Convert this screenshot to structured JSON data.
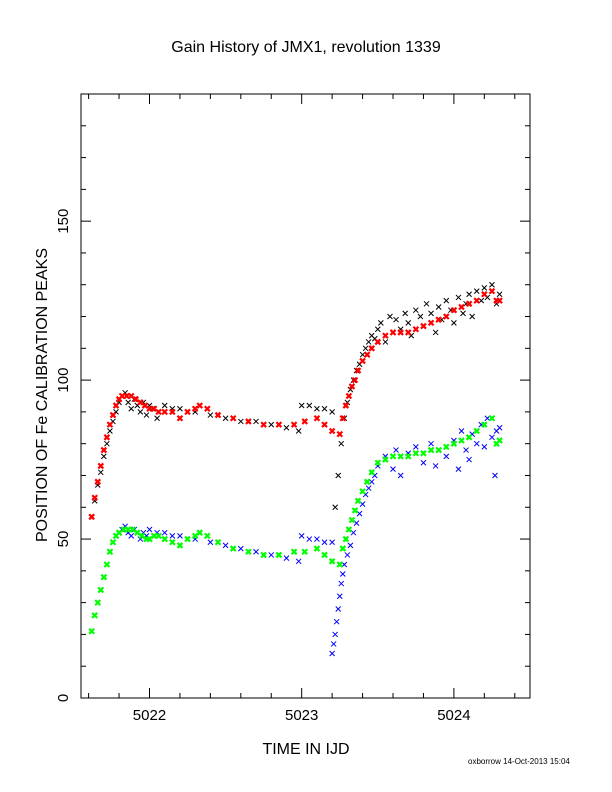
{
  "chart_data": {
    "type": "scatter",
    "title": "Gain History of JMX1, revolution 1339",
    "xlabel": "TIME IN IJD",
    "ylabel": "POSITION OF Fe CALIBRATION PEAKS",
    "xlim": [
      5021.55,
      5024.5
    ],
    "ylim": [
      0,
      190
    ],
    "x_ticks": [
      5022,
      5023,
      5024
    ],
    "x_tick_labels": [
      "5022",
      "5023",
      "5024"
    ],
    "y_ticks": [
      0,
      50,
      100,
      150
    ],
    "y_tick_labels": [
      "0",
      "50",
      "100",
      "150"
    ],
    "grid": false,
    "series": [
      {
        "color": "#000000",
        "marker": "x",
        "points": [
          [
            5021.62,
            57
          ],
          [
            5021.64,
            62
          ],
          [
            5021.66,
            67
          ],
          [
            5021.68,
            71
          ],
          [
            5021.7,
            76
          ],
          [
            5021.72,
            80
          ],
          [
            5021.74,
            84
          ],
          [
            5021.76,
            87
          ],
          [
            5021.78,
            90
          ],
          [
            5021.8,
            93
          ],
          [
            5021.82,
            95
          ],
          [
            5021.84,
            96
          ],
          [
            5021.86,
            93
          ],
          [
            5021.88,
            91
          ],
          [
            5021.9,
            94
          ],
          [
            5021.92,
            92
          ],
          [
            5021.94,
            90
          ],
          [
            5021.96,
            93
          ],
          [
            5021.98,
            89
          ],
          [
            5022.0,
            92
          ],
          [
            5022.02,
            91
          ],
          [
            5022.05,
            88
          ],
          [
            5022.1,
            92
          ],
          [
            5022.15,
            91
          ],
          [
            5022.2,
            91
          ],
          [
            5022.3,
            90
          ],
          [
            5022.4,
            89
          ],
          [
            5022.5,
            88
          ],
          [
            5022.6,
            87
          ],
          [
            5022.7,
            87
          ],
          [
            5022.8,
            86
          ],
          [
            5022.9,
            85
          ],
          [
            5022.98,
            84
          ],
          [
            5023.0,
            92
          ],
          [
            5023.05,
            92
          ],
          [
            5023.1,
            91
          ],
          [
            5023.15,
            91
          ],
          [
            5023.2,
            90
          ],
          [
            5023.22,
            60
          ],
          [
            5023.24,
            70
          ],
          [
            5023.26,
            80
          ],
          [
            5023.28,
            88
          ],
          [
            5023.3,
            93
          ],
          [
            5023.32,
            97
          ],
          [
            5023.34,
            100
          ],
          [
            5023.36,
            103
          ],
          [
            5023.38,
            105
          ],
          [
            5023.4,
            108
          ],
          [
            5023.42,
            110
          ],
          [
            5023.44,
            112
          ],
          [
            5023.46,
            114
          ],
          [
            5023.48,
            113
          ],
          [
            5023.5,
            116
          ],
          [
            5023.52,
            118
          ],
          [
            5023.55,
            112
          ],
          [
            5023.58,
            120
          ],
          [
            5023.6,
            115
          ],
          [
            5023.62,
            119
          ],
          [
            5023.65,
            116
          ],
          [
            5023.68,
            121
          ],
          [
            5023.7,
            118
          ],
          [
            5023.72,
            114
          ],
          [
            5023.75,
            122
          ],
          [
            5023.78,
            120
          ],
          [
            5023.8,
            117
          ],
          [
            5023.82,
            124
          ],
          [
            5023.85,
            121
          ],
          [
            5023.88,
            115
          ],
          [
            5023.9,
            123
          ],
          [
            5023.92,
            119
          ],
          [
            5023.95,
            125
          ],
          [
            5023.98,
            122
          ],
          [
            5024.0,
            118
          ],
          [
            5024.03,
            126
          ],
          [
            5024.06,
            121
          ],
          [
            5024.08,
            124
          ],
          [
            5024.1,
            127
          ],
          [
            5024.12,
            120
          ],
          [
            5024.15,
            128
          ],
          [
            5024.18,
            125
          ],
          [
            5024.2,
            129
          ],
          [
            5024.22,
            126
          ],
          [
            5024.25,
            130
          ],
          [
            5024.28,
            124
          ],
          [
            5024.3,
            127
          ]
        ]
      },
      {
        "color": "#ff0000",
        "marker": "x",
        "points": [
          [
            5021.62,
            57
          ],
          [
            5021.64,
            63
          ],
          [
            5021.66,
            68
          ],
          [
            5021.68,
            73
          ],
          [
            5021.7,
            78
          ],
          [
            5021.72,
            82
          ],
          [
            5021.74,
            86
          ],
          [
            5021.76,
            89
          ],
          [
            5021.78,
            92
          ],
          [
            5021.8,
            94
          ],
          [
            5021.82,
            95
          ],
          [
            5021.85,
            95
          ],
          [
            5021.88,
            95
          ],
          [
            5021.91,
            94
          ],
          [
            5021.94,
            93
          ],
          [
            5021.97,
            92
          ],
          [
            5022.0,
            91
          ],
          [
            5022.03,
            91
          ],
          [
            5022.06,
            90
          ],
          [
            5022.1,
            90
          ],
          [
            5022.15,
            90
          ],
          [
            5022.2,
            88
          ],
          [
            5022.25,
            90
          ],
          [
            5022.3,
            91
          ],
          [
            5022.33,
            92
          ],
          [
            5022.38,
            91
          ],
          [
            5022.45,
            89
          ],
          [
            5022.55,
            88
          ],
          [
            5022.65,
            87
          ],
          [
            5022.75,
            86
          ],
          [
            5022.85,
            86
          ],
          [
            5022.95,
            86
          ],
          [
            5023.02,
            87
          ],
          [
            5023.1,
            88
          ],
          [
            5023.15,
            86
          ],
          [
            5023.2,
            84
          ],
          [
            5023.25,
            83
          ],
          [
            5023.27,
            88
          ],
          [
            5023.29,
            92
          ],
          [
            5023.31,
            95
          ],
          [
            5023.33,
            98
          ],
          [
            5023.35,
            100
          ],
          [
            5023.37,
            103
          ],
          [
            5023.4,
            106
          ],
          [
            5023.43,
            108
          ],
          [
            5023.46,
            110
          ],
          [
            5023.5,
            112
          ],
          [
            5023.55,
            114
          ],
          [
            5023.6,
            115
          ],
          [
            5023.65,
            115
          ],
          [
            5023.7,
            115
          ],
          [
            5023.75,
            116
          ],
          [
            5023.8,
            117
          ],
          [
            5023.85,
            118
          ],
          [
            5023.9,
            119
          ],
          [
            5023.95,
            120
          ],
          [
            5024.0,
            122
          ],
          [
            5024.05,
            123
          ],
          [
            5024.1,
            124
          ],
          [
            5024.15,
            125
          ],
          [
            5024.2,
            127
          ],
          [
            5024.25,
            128
          ],
          [
            5024.28,
            125
          ],
          [
            5024.3,
            125
          ]
        ]
      },
      {
        "color": "#0000ff",
        "marker": "x",
        "points": [
          [
            5021.62,
            21
          ],
          [
            5021.64,
            26
          ],
          [
            5021.66,
            30
          ],
          [
            5021.68,
            34
          ],
          [
            5021.7,
            38
          ],
          [
            5021.72,
            42
          ],
          [
            5021.74,
            46
          ],
          [
            5021.76,
            49
          ],
          [
            5021.78,
            51
          ],
          [
            5021.8,
            52
          ],
          [
            5021.82,
            53
          ],
          [
            5021.84,
            54
          ],
          [
            5021.86,
            52
          ],
          [
            5021.88,
            51
          ],
          [
            5021.9,
            53
          ],
          [
            5021.92,
            52
          ],
          [
            5021.94,
            50
          ],
          [
            5021.96,
            52
          ],
          [
            5021.98,
            51
          ],
          [
            5022.0,
            53
          ],
          [
            5022.05,
            52
          ],
          [
            5022.1,
            52
          ],
          [
            5022.15,
            51
          ],
          [
            5022.2,
            51
          ],
          [
            5022.3,
            50
          ],
          [
            5022.4,
            49
          ],
          [
            5022.5,
            48
          ],
          [
            5022.6,
            47
          ],
          [
            5022.7,
            46
          ],
          [
            5022.8,
            45
          ],
          [
            5022.9,
            44
          ],
          [
            5022.98,
            43
          ],
          [
            5023.0,
            51
          ],
          [
            5023.05,
            50
          ],
          [
            5023.1,
            50
          ],
          [
            5023.15,
            49
          ],
          [
            5023.2,
            49
          ],
          [
            5023.2,
            14
          ],
          [
            5023.21,
            17
          ],
          [
            5023.22,
            20
          ],
          [
            5023.23,
            24
          ],
          [
            5023.24,
            28
          ],
          [
            5023.25,
            32
          ],
          [
            5023.26,
            36
          ],
          [
            5023.27,
            39
          ],
          [
            5023.28,
            42
          ],
          [
            5023.3,
            45
          ],
          [
            5023.32,
            48
          ],
          [
            5023.34,
            52
          ],
          [
            5023.36,
            55
          ],
          [
            5023.38,
            58
          ],
          [
            5023.4,
            61
          ],
          [
            5023.42,
            64
          ],
          [
            5023.44,
            66
          ],
          [
            5023.46,
            68
          ],
          [
            5023.48,
            70
          ],
          [
            5023.5,
            73
          ],
          [
            5023.55,
            76
          ],
          [
            5023.6,
            72
          ],
          [
            5023.62,
            78
          ],
          [
            5023.65,
            70
          ],
          [
            5023.7,
            77
          ],
          [
            5023.75,
            79
          ],
          [
            5023.8,
            74
          ],
          [
            5023.85,
            80
          ],
          [
            5023.88,
            73
          ],
          [
            5023.9,
            78
          ],
          [
            5023.95,
            76
          ],
          [
            5024.0,
            81
          ],
          [
            5024.03,
            72
          ],
          [
            5024.05,
            84
          ],
          [
            5024.08,
            78
          ],
          [
            5024.1,
            75
          ],
          [
            5024.12,
            83
          ],
          [
            5024.15,
            80
          ],
          [
            5024.18,
            86
          ],
          [
            5024.2,
            79
          ],
          [
            5024.22,
            88
          ],
          [
            5024.25,
            82
          ],
          [
            5024.27,
            70
          ],
          [
            5024.28,
            84
          ],
          [
            5024.3,
            85
          ]
        ]
      },
      {
        "color": "#00ff00",
        "marker": "x",
        "points": [
          [
            5021.62,
            21
          ],
          [
            5021.64,
            26
          ],
          [
            5021.66,
            30
          ],
          [
            5021.68,
            34
          ],
          [
            5021.7,
            38
          ],
          [
            5021.72,
            42
          ],
          [
            5021.74,
            46
          ],
          [
            5021.76,
            49
          ],
          [
            5021.78,
            51
          ],
          [
            5021.8,
            52
          ],
          [
            5021.83,
            53
          ],
          [
            5021.86,
            53
          ],
          [
            5021.89,
            53
          ],
          [
            5021.92,
            52
          ],
          [
            5021.95,
            51
          ],
          [
            5021.98,
            50
          ],
          [
            5022.0,
            50
          ],
          [
            5022.03,
            51
          ],
          [
            5022.06,
            51
          ],
          [
            5022.1,
            50
          ],
          [
            5022.15,
            49
          ],
          [
            5022.2,
            48
          ],
          [
            5022.25,
            50
          ],
          [
            5022.3,
            51
          ],
          [
            5022.33,
            52
          ],
          [
            5022.38,
            51
          ],
          [
            5022.45,
            49
          ],
          [
            5022.55,
            47
          ],
          [
            5022.65,
            46
          ],
          [
            5022.75,
            45
          ],
          [
            5022.85,
            45
          ],
          [
            5022.95,
            46
          ],
          [
            5023.02,
            46
          ],
          [
            5023.1,
            47
          ],
          [
            5023.15,
            45
          ],
          [
            5023.2,
            43
          ],
          [
            5023.25,
            42
          ],
          [
            5023.27,
            47
          ],
          [
            5023.29,
            50
          ],
          [
            5023.31,
            53
          ],
          [
            5023.33,
            56
          ],
          [
            5023.35,
            59
          ],
          [
            5023.37,
            62
          ],
          [
            5023.4,
            65
          ],
          [
            5023.43,
            68
          ],
          [
            5023.46,
            71
          ],
          [
            5023.5,
            74
          ],
          [
            5023.55,
            75
          ],
          [
            5023.6,
            76
          ],
          [
            5023.65,
            76
          ],
          [
            5023.7,
            76
          ],
          [
            5023.75,
            77
          ],
          [
            5023.8,
            77
          ],
          [
            5023.85,
            78
          ],
          [
            5023.9,
            78
          ],
          [
            5023.95,
            79
          ],
          [
            5024.0,
            80
          ],
          [
            5024.05,
            81
          ],
          [
            5024.1,
            82
          ],
          [
            5024.15,
            84
          ],
          [
            5024.2,
            86
          ],
          [
            5024.25,
            88
          ],
          [
            5024.28,
            80
          ],
          [
            5024.3,
            81
          ]
        ]
      }
    ]
  },
  "footer": {
    "text": "oxborrow 14-Oct-2013 15:04"
  }
}
